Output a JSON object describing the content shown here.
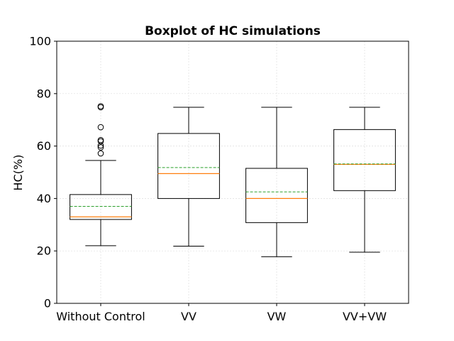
{
  "chart_data": {
    "type": "boxplot",
    "title": "Boxplot of HC simulations",
    "xlabel": "",
    "ylabel": "HC(%)",
    "ylim": [
      0,
      100
    ],
    "yticks": [
      0,
      20,
      40,
      60,
      80,
      100
    ],
    "grid": true,
    "categories": [
      "Without Control",
      "VV",
      "VW",
      "VV+VW"
    ],
    "boxes": [
      {
        "category": "Without Control",
        "whisker_low": 22,
        "q1": 32,
        "median": 33,
        "mean": 37,
        "q3": 41.5,
        "whisker_high": 54.5,
        "outliers": [
          57.2,
          59.5,
          60.2,
          61.8,
          62.3,
          67.2,
          74.8,
          75.2
        ]
      },
      {
        "category": "VV",
        "whisker_low": 21.8,
        "q1": 40,
        "median": 49.5,
        "mean": 51.8,
        "q3": 64.8,
        "whisker_high": 74.8,
        "outliers": []
      },
      {
        "category": "VW",
        "whisker_low": 17.8,
        "q1": 30.8,
        "median": 40,
        "mean": 42.5,
        "q3": 51.5,
        "whisker_high": 74.8,
        "outliers": []
      },
      {
        "category": "VV+VW",
        "whisker_low": 19.5,
        "q1": 43,
        "median": 53,
        "mean": 53.2,
        "q3": 66.3,
        "whisker_high": 74.8,
        "outliers": []
      }
    ],
    "colors": {
      "median": "#ff7f0e",
      "mean": "#2ca02c",
      "box": "#000000",
      "grid": "#dddddd"
    }
  }
}
